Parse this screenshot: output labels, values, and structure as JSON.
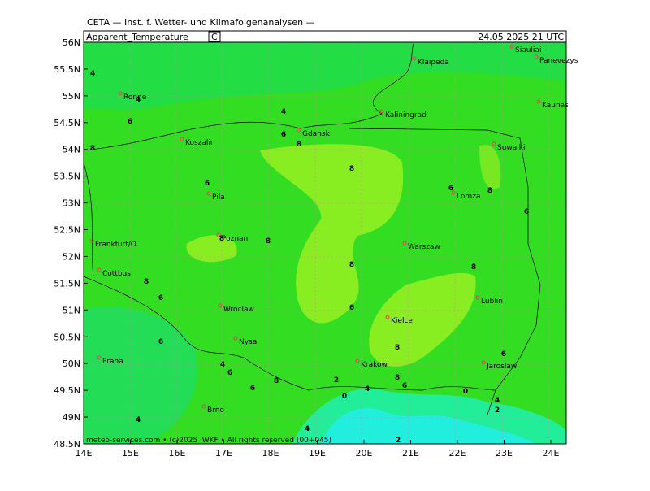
{
  "header": "CETA — Inst. f. Wetter- und Klimafolgenanalysen —",
  "panel": {
    "title": "Apparent_Temperature",
    "unit": "C",
    "date": "24.05.2025 21 UTC"
  },
  "lat_labels": [
    "56N",
    "55.5N",
    "55N",
    "54.5N",
    "54N",
    "53.5N",
    "53N",
    "52.5N",
    "52N",
    "51.5N",
    "51N",
    "50.5N",
    "50N",
    "49.5N",
    "49N",
    "48.5N"
  ],
  "lon_labels": [
    "14E",
    "15E",
    "16E",
    "17E",
    "18E",
    "19E",
    "20E",
    "21E",
    "22E",
    "23E",
    "24E"
  ],
  "cities": [
    "Siauliai",
    "Panevezys",
    "Klaipeda",
    "Kaunas",
    "Ronne",
    "Kaliningrad",
    "Gdansk",
    "Koszalin",
    "Suwalki",
    "Lomza",
    "Pila",
    "Poznan",
    "Frankfurt/O.",
    "Warszaw",
    "Cottbus",
    "Lublin",
    "Wroclaw",
    "Kielce",
    "Nysa",
    "Praha",
    "Krakow",
    "Jaroslaw",
    "Brno"
  ],
  "contour_labels": [
    "4",
    "4",
    "6",
    "4",
    "6",
    "8",
    "8",
    "8",
    "6",
    "6",
    "8",
    "6",
    "8",
    "8",
    "8",
    "8",
    "6",
    "8",
    "6",
    "6",
    "4",
    "6",
    "8",
    "6",
    "8",
    "8",
    "6",
    "2",
    "4",
    "6",
    "0",
    "0",
    "4",
    "2",
    "4",
    "4",
    "2"
  ],
  "footer": "meteo-services.com • (c)2025 IWKF • All rights reserved (00+045)"
}
